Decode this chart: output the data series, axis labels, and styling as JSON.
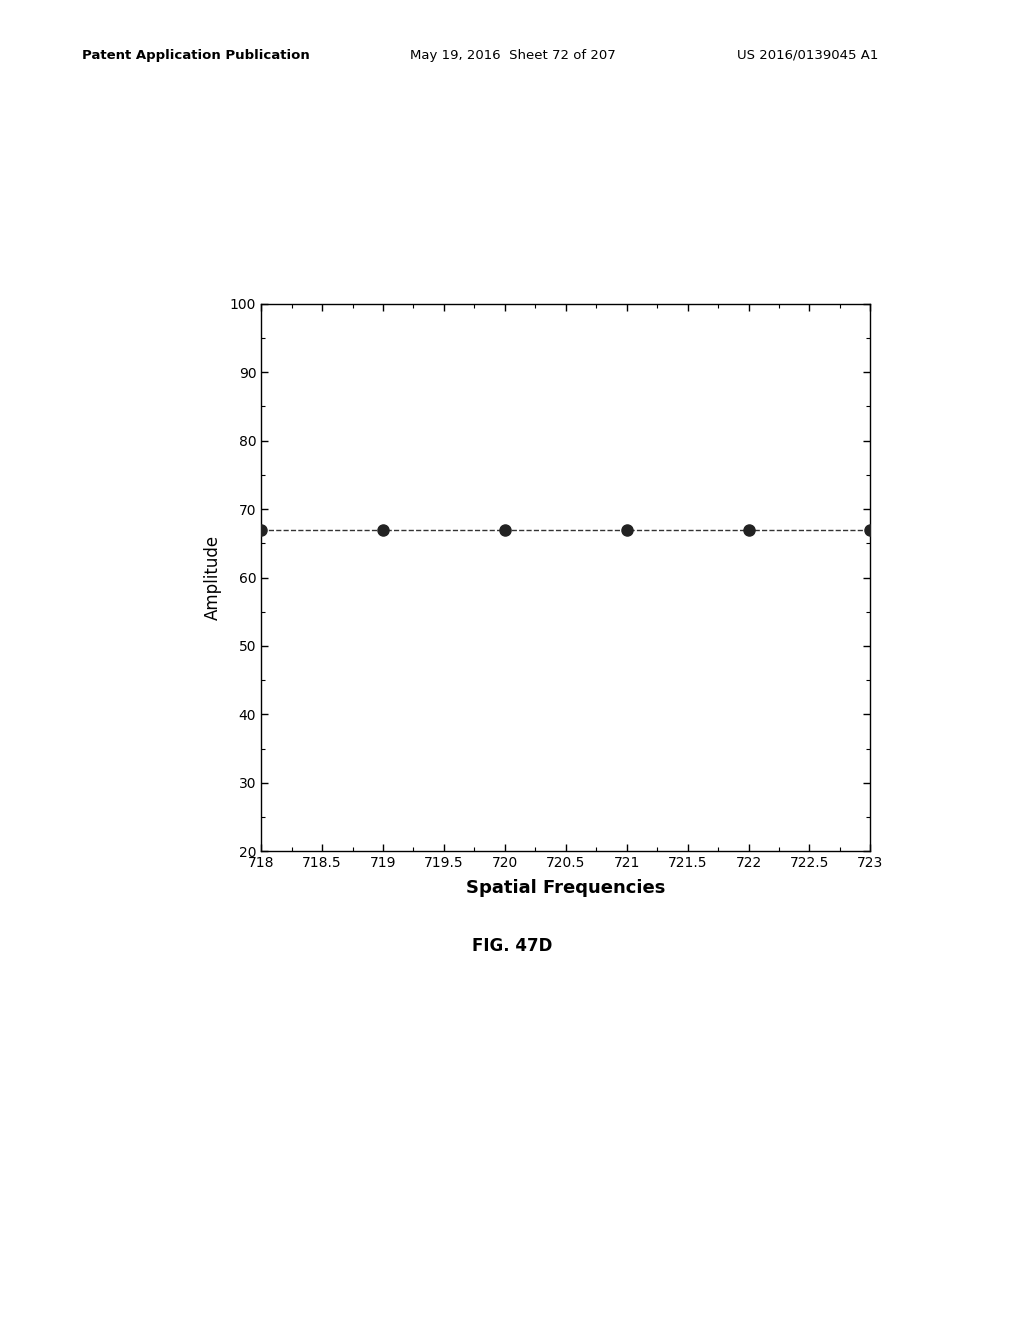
{
  "x_data": [
    718,
    719,
    720,
    721,
    722,
    723
  ],
  "y_data": [
    67,
    67,
    67,
    67,
    67,
    67
  ],
  "x_min": 718,
  "x_max": 723,
  "x_ticks": [
    718,
    718.5,
    719,
    719.5,
    720,
    720.5,
    721,
    721.5,
    722,
    722.5,
    723
  ],
  "x_tick_labels": [
    "718",
    "718.5",
    "719",
    "719.5",
    "720",
    "720.5",
    "721",
    "721.5",
    "722",
    "722.5",
    "723"
  ],
  "y_min": 20,
  "y_max": 100,
  "y_ticks": [
    20,
    30,
    40,
    50,
    60,
    70,
    80,
    90,
    100
  ],
  "xlabel": "Spatial Frequencies",
  "ylabel": "Amplitude",
  "fig_label": "FIG. 47D",
  "line_color": "#333333",
  "marker_color": "#222222",
  "marker_size": 8,
  "line_width": 1.0,
  "line_style": "--",
  "background_color": "#ffffff",
  "header_left": "Patent Application Publication",
  "header_mid": "May 19, 2016  Sheet 72 of 207",
  "header_right": "US 2016/0139045 A1"
}
